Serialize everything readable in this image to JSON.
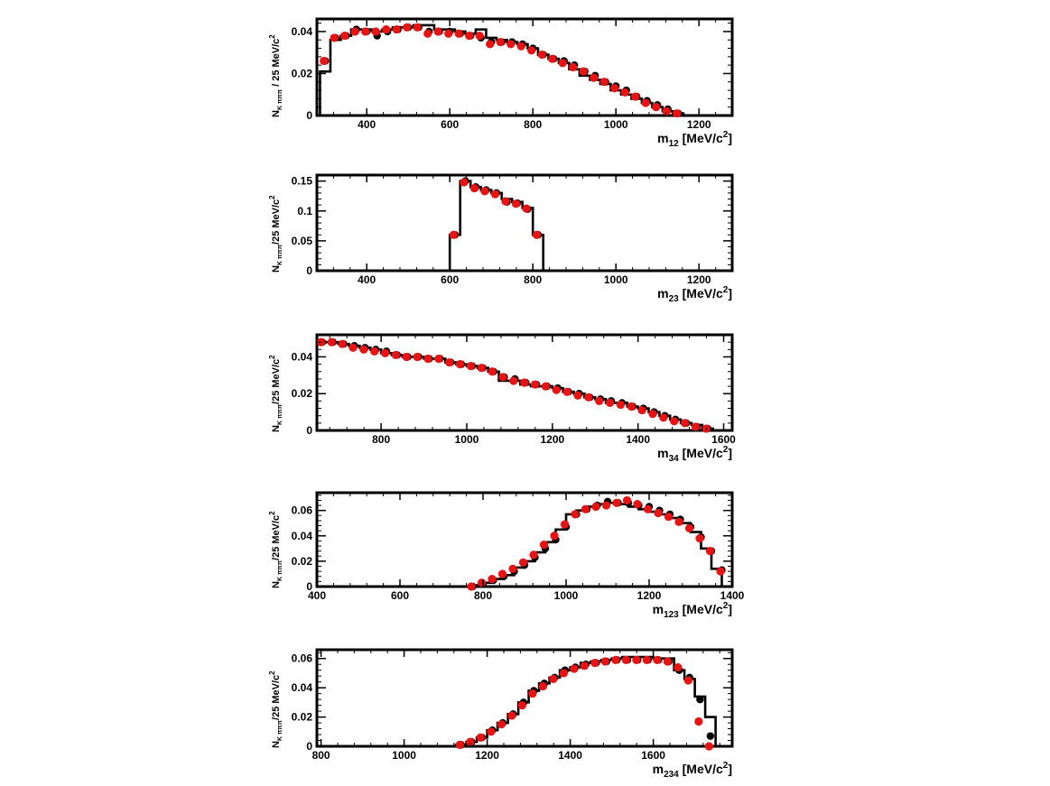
{
  "colors": {
    "mc": "#000000",
    "data": "#ee1111"
  },
  "chart_data": [
    {
      "type": "line",
      "xlabel": "m",
      "xlabel_sub": "12",
      "xlabel_unit": " [MeV/c",
      "xlabel_sup": "2",
      "xlabel_close": "]",
      "ylabel": "N",
      "ylabel_sub": "K πππ",
      "ylabel_rest": " / 25 MeV/c",
      "ylabel_sup": "2",
      "xlim": [
        280,
        1280
      ],
      "ylim": [
        0,
        0.046
      ],
      "xticks": [
        400,
        600,
        800,
        1000,
        1200
      ],
      "yticks": [
        0,
        0.02,
        0.04
      ],
      "xtick_labels": [
        "400",
        "600",
        "800",
        "1000",
        "1200"
      ],
      "ytick_labels": [
        "0",
        "0.02",
        "0.04"
      ],
      "series": [
        {
          "style": "histogram",
          "edges": [
            287.5,
            312.5,
            337.5,
            362.5,
            387.5,
            412.5,
            437.5,
            462.5,
            487.5,
            512.5,
            537.5,
            562.5,
            587.5,
            612.5,
            637.5,
            662.5,
            687.5,
            712.5,
            737.5,
            762.5,
            787.5,
            812.5,
            837.5,
            862.5,
            887.5,
            912.5,
            937.5,
            962.5,
            987.5,
            1012.5,
            1037.5,
            1062.5,
            1087.5,
            1112.5,
            1137.5,
            1162.5
          ],
          "values": [
            0.021,
            0.036,
            0.038,
            0.041,
            0.041,
            0.04,
            0.041,
            0.042,
            0.042,
            0.043,
            0.043,
            0.041,
            0.041,
            0.04,
            0.039,
            0.041,
            0.037,
            0.036,
            0.035,
            0.034,
            0.032,
            0.029,
            0.027,
            0.025,
            0.022,
            0.019,
            0.017,
            0.015,
            0.012,
            0.01,
            0.008,
            0.006,
            0.004,
            0.002,
            0.001
          ]
        },
        {
          "style": "points",
          "x": [
            300,
            325,
            350,
            375,
            400,
            425,
            450,
            475,
            500,
            525,
            550,
            575,
            600,
            625,
            650,
            675,
            700,
            725,
            750,
            775,
            800,
            825,
            850,
            875,
            900,
            925,
            950,
            975,
            1000,
            1025,
            1050,
            1075,
            1100,
            1125,
            1150
          ],
          "black": [
            0.026,
            0.037,
            0.038,
            0.041,
            0.04,
            0.038,
            0.04,
            0.041,
            0.042,
            0.042,
            0.04,
            0.04,
            0.04,
            0.039,
            0.038,
            0.037,
            0.035,
            0.035,
            0.035,
            0.034,
            0.032,
            0.029,
            0.027,
            0.026,
            0.024,
            0.021,
            0.019,
            0.016,
            0.014,
            0.012,
            0.009,
            0.007,
            0.005,
            0.003,
            0.001
          ],
          "red": [
            0.026,
            0.037,
            0.038,
            0.04,
            0.04,
            0.04,
            0.041,
            0.041,
            0.042,
            0.042,
            0.039,
            0.04,
            0.039,
            0.039,
            0.038,
            0.038,
            0.034,
            0.035,
            0.034,
            0.033,
            0.031,
            0.029,
            0.027,
            0.025,
            0.023,
            0.021,
            0.018,
            0.016,
            0.013,
            0.011,
            0.009,
            0.006,
            0.004,
            0.002,
            0.001
          ]
        }
      ]
    },
    {
      "type": "line",
      "xlabel": "m",
      "xlabel_sub": "23",
      "xlabel_unit": " [MeV/c",
      "xlabel_sup": "2",
      "xlabel_close": "]",
      "ylabel": "N",
      "ylabel_sub": "K πππ",
      "ylabel_rest": "/25 MeV/c",
      "ylabel_sup": "2",
      "xlim": [
        280,
        1280
      ],
      "ylim": [
        0,
        0.16
      ],
      "xticks": [
        400,
        600,
        800,
        1000,
        1200
      ],
      "yticks": [
        0,
        0.05,
        0.1,
        0.15
      ],
      "xtick_labels": [
        "400",
        "600",
        "800",
        "1000",
        "1200"
      ],
      "ytick_labels": [
        "0",
        "0.05",
        "0.1",
        "0.15"
      ],
      "series": [
        {
          "style": "histogram",
          "edges": [
            600,
            625,
            650,
            675,
            700,
            725,
            750,
            775,
            800,
            825
          ],
          "values": [
            0.06,
            0.15,
            0.14,
            0.135,
            0.13,
            0.12,
            0.115,
            0.105,
            0.06
          ]
        },
        {
          "style": "points",
          "x": [
            612.5,
            637.5,
            662.5,
            687.5,
            712.5,
            737.5,
            762.5,
            787.5,
            812.5
          ],
          "black": [
            0.06,
            0.15,
            0.14,
            0.135,
            0.13,
            0.115,
            0.113,
            0.103,
            0.06
          ],
          "red": [
            0.06,
            0.148,
            0.138,
            0.133,
            0.128,
            0.116,
            0.112,
            0.104,
            0.06
          ]
        }
      ]
    },
    {
      "type": "line",
      "xlabel": "m",
      "xlabel_sub": "34",
      "xlabel_unit": " [MeV/c",
      "xlabel_sup": "2",
      "xlabel_close": "]",
      "ylabel": "N",
      "ylabel_sub": "K πππ",
      "ylabel_rest": "/25 MeV/c",
      "ylabel_sup": "2",
      "xlim": [
        650,
        1620
      ],
      "ylim": [
        0,
        0.052
      ],
      "xticks": [
        800,
        1000,
        1200,
        1400,
        1600
      ],
      "yticks": [
        0,
        0.02,
        0.04
      ],
      "xtick_labels": [
        "800",
        "1000",
        "1200",
        "1400",
        "1600"
      ],
      "ytick_labels": [
        "0",
        "0.02",
        "0.04"
      ],
      "series": [
        {
          "style": "histogram",
          "edges": [
            650,
            675,
            700,
            725,
            750,
            775,
            800,
            825,
            850,
            875,
            900,
            925,
            950,
            975,
            1000,
            1025,
            1050,
            1075,
            1100,
            1125,
            1150,
            1175,
            1200,
            1225,
            1250,
            1275,
            1300,
            1325,
            1350,
            1375,
            1400,
            1425,
            1450,
            1475,
            1500,
            1525,
            1550,
            1575
          ],
          "values": [
            0.048,
            0.048,
            0.047,
            0.046,
            0.045,
            0.044,
            0.042,
            0.041,
            0.04,
            0.04,
            0.039,
            0.039,
            0.037,
            0.036,
            0.035,
            0.034,
            0.032,
            0.027,
            0.027,
            0.025,
            0.024,
            0.024,
            0.023,
            0.021,
            0.02,
            0.018,
            0.017,
            0.015,
            0.015,
            0.013,
            0.012,
            0.01,
            0.008,
            0.006,
            0.004,
            0.003,
            0.001
          ]
        },
        {
          "style": "points",
          "x": [
            662.5,
            687.5,
            712.5,
            737.5,
            762.5,
            787.5,
            812.5,
            837.5,
            862.5,
            887.5,
            912.5,
            937.5,
            962.5,
            987.5,
            1012.5,
            1037.5,
            1062.5,
            1087.5,
            1112.5,
            1137.5,
            1162.5,
            1187.5,
            1212.5,
            1237.5,
            1262.5,
            1287.5,
            1312.5,
            1337.5,
            1362.5,
            1387.5,
            1412.5,
            1437.5,
            1462.5,
            1487.5,
            1512.5,
            1537.5,
            1562.5
          ],
          "black": [
            0.048,
            0.048,
            0.047,
            0.046,
            0.045,
            0.044,
            0.043,
            0.041,
            0.04,
            0.04,
            0.039,
            0.039,
            0.037,
            0.036,
            0.035,
            0.034,
            0.032,
            0.029,
            0.028,
            0.026,
            0.025,
            0.024,
            0.023,
            0.021,
            0.02,
            0.018,
            0.017,
            0.016,
            0.015,
            0.013,
            0.012,
            0.01,
            0.008,
            0.006,
            0.004,
            0.002,
            0.001
          ],
          "red": [
            0.048,
            0.048,
            0.047,
            0.045,
            0.044,
            0.043,
            0.042,
            0.041,
            0.04,
            0.04,
            0.039,
            0.039,
            0.037,
            0.036,
            0.035,
            0.034,
            0.032,
            0.029,
            0.027,
            0.026,
            0.025,
            0.024,
            0.022,
            0.021,
            0.019,
            0.018,
            0.016,
            0.015,
            0.014,
            0.013,
            0.011,
            0.009,
            0.007,
            0.005,
            0.004,
            0.002,
            0.001
          ]
        }
      ]
    },
    {
      "type": "line",
      "xlabel": "m",
      "xlabel_sub": "123",
      "xlabel_unit": " [MeV/c",
      "xlabel_sup": "2",
      "xlabel_close": "]",
      "ylabel": "N",
      "ylabel_sub": "K πππ",
      "ylabel_rest": "/25 MeV/c",
      "ylabel_sup": "2",
      "xlim": [
        400,
        1400
      ],
      "ylim": [
        0,
        0.074
      ],
      "xticks": [
        400,
        600,
        800,
        1000,
        1200,
        1400
      ],
      "yticks": [
        0,
        0.02,
        0.04,
        0.06
      ],
      "xtick_labels": [
        "400",
        "600",
        "800",
        "1000",
        "1200",
        "1400"
      ],
      "ytick_labels": [
        "0",
        "0.02",
        "0.04",
        "0.06"
      ],
      "series": [
        {
          "style": "histogram",
          "edges": [
            400,
            425,
            450,
            475,
            500,
            525,
            550,
            575,
            600,
            625,
            650,
            675,
            700,
            725,
            750,
            775,
            800,
            825,
            850,
            875,
            900,
            925,
            950,
            975,
            1000,
            1025,
            1050,
            1075,
            1100,
            1125,
            1150,
            1175,
            1200,
            1225,
            1250,
            1275,
            1300,
            1325,
            1350,
            1375
          ],
          "values": [
            0,
            0,
            0,
            0,
            0,
            0,
            0,
            0,
            0,
            0,
            0,
            0,
            0,
            0,
            0,
            0.001,
            0.003,
            0.006,
            0.009,
            0.015,
            0.02,
            0.027,
            0.035,
            0.045,
            0.057,
            0.06,
            0.063,
            0.065,
            0.066,
            0.065,
            0.063,
            0.061,
            0.059,
            0.057,
            0.054,
            0.05,
            0.043,
            0.03,
            0.014
          ]
        },
        {
          "style": "points",
          "x": [
            775,
            800,
            825,
            850,
            875,
            900,
            925,
            950,
            975,
            1000,
            1025,
            1050,
            1075,
            1100,
            1125,
            1150,
            1175,
            1200,
            1225,
            1250,
            1275,
            1300,
            1325,
            1350,
            1375
          ],
          "black": [
            0.0,
            0.002,
            0.005,
            0.008,
            0.012,
            0.017,
            0.023,
            0.03,
            0.037,
            0.047,
            0.057,
            0.061,
            0.064,
            0.067,
            0.066,
            0.066,
            0.064,
            0.063,
            0.06,
            0.057,
            0.053,
            0.047,
            0.039,
            0.028,
            0.013
          ],
          "red": [
            0.0,
            0.003,
            0.006,
            0.01,
            0.014,
            0.019,
            0.025,
            0.033,
            0.04,
            0.049,
            0.057,
            0.061,
            0.063,
            0.064,
            0.066,
            0.068,
            0.065,
            0.061,
            0.058,
            0.055,
            0.051,
            0.046,
            0.038,
            0.028,
            0.012
          ]
        }
      ]
    },
    {
      "type": "line",
      "xlabel": "m",
      "xlabel_sub": "234",
      "xlabel_unit": " [MeV/c",
      "xlabel_sup": "2",
      "xlabel_close": "]",
      "ylabel": "N",
      "ylabel_sub": "K πππ",
      "ylabel_rest": "/25 MeV/c",
      "ylabel_sup": "2",
      "xlim": [
        790,
        1790
      ],
      "ylim": [
        0,
        0.066
      ],
      "xticks": [
        800,
        1000,
        1200,
        1400,
        1600
      ],
      "yticks": [
        0,
        0.02,
        0.04,
        0.06
      ],
      "xtick_labels": [
        "800",
        "1000",
        "1200",
        "1400",
        "1600"
      ],
      "ytick_labels": [
        "0",
        "0.02",
        "0.04",
        "0.06"
      ],
      "series": [
        {
          "style": "histogram",
          "edges": [
            1125,
            1150,
            1175,
            1200,
            1225,
            1250,
            1275,
            1300,
            1325,
            1350,
            1375,
            1400,
            1425,
            1450,
            1475,
            1500,
            1525,
            1550,
            1575,
            1600,
            1625,
            1650,
            1675,
            1700,
            1725,
            1750
          ],
          "values": [
            0.001,
            0.003,
            0.006,
            0.011,
            0.016,
            0.022,
            0.03,
            0.038,
            0.043,
            0.047,
            0.052,
            0.054,
            0.057,
            0.058,
            0.059,
            0.06,
            0.061,
            0.061,
            0.061,
            0.06,
            0.06,
            0.052,
            0.046,
            0.034,
            0.02
          ]
        },
        {
          "style": "points",
          "x": [
            1137.5,
            1162.5,
            1187.5,
            1212.5,
            1237.5,
            1262.5,
            1287.5,
            1312.5,
            1337.5,
            1362.5,
            1387.5,
            1412.5,
            1437.5,
            1462.5,
            1487.5,
            1512.5,
            1537.5,
            1562.5,
            1587.5,
            1612.5,
            1637.5,
            1662.5,
            1687.5,
            1712.5,
            1737.5
          ],
          "black": [
            0.001,
            0.003,
            0.006,
            0.011,
            0.016,
            0.022,
            0.03,
            0.038,
            0.043,
            0.047,
            0.052,
            0.054,
            0.056,
            0.057,
            0.058,
            0.059,
            0.059,
            0.059,
            0.059,
            0.059,
            0.058,
            0.052,
            0.047,
            0.032,
            0.007
          ],
          "red": [
            0.001,
            0.003,
            0.006,
            0.01,
            0.015,
            0.021,
            0.028,
            0.036,
            0.041,
            0.046,
            0.05,
            0.053,
            0.055,
            0.057,
            0.058,
            0.059,
            0.059,
            0.059,
            0.059,
            0.059,
            0.058,
            0.054,
            0.045,
            0.017,
            0.0
          ]
        }
      ]
    }
  ]
}
